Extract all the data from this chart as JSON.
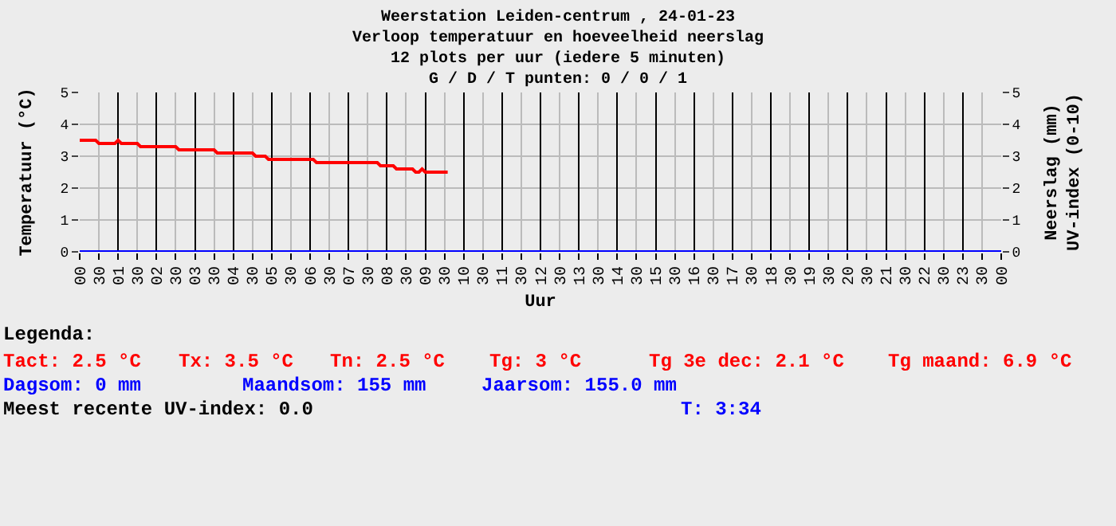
{
  "chart_data": {
    "type": "line",
    "title": "Weerstation Leiden-centrum , 24-01-23\nVerloop temperatuur en hoeveelheid neerslag\n12 plots per uur (iedere 5 minuten)\nG / D / T punten: 0 / 0 / 1",
    "xlabel": "Uur",
    "ylabel": "Temperatuur (°C)",
    "y2label": "Neerslag (mm)\nUV-index (0-10)",
    "categories": [
      "00",
      null,
      null,
      null,
      null,
      null,
      "30",
      null,
      null,
      null,
      null,
      null,
      "01",
      null,
      null,
      null,
      null,
      null,
      "30",
      null,
      null,
      null,
      null,
      null,
      "02",
      null,
      null,
      null,
      null,
      null,
      "30",
      null,
      null,
      null,
      null,
      null,
      "03",
      null,
      null,
      null,
      null,
      null,
      "30",
      null,
      null,
      null,
      null,
      null,
      "04",
      null,
      null,
      null,
      null,
      null,
      "30",
      null,
      null,
      null,
      null,
      null,
      "05",
      null,
      null,
      null,
      null,
      null,
      "30",
      null,
      null,
      null,
      null,
      null,
      "06",
      null,
      null,
      null,
      null,
      null,
      "30",
      null,
      null,
      null,
      null,
      null,
      "07",
      null,
      null,
      null,
      null,
      null,
      "30",
      null,
      null,
      null,
      null,
      null,
      "08",
      null,
      null,
      null,
      null,
      null,
      "30",
      null,
      null,
      null,
      null,
      null,
      "09",
      null,
      null,
      null,
      null,
      null,
      "30",
      null,
      null,
      null,
      null,
      null,
      "10",
      null,
      null,
      null,
      null,
      null,
      "30",
      null,
      null,
      null,
      null,
      null,
      "11",
      null,
      null,
      null,
      null,
      null,
      "30",
      null,
      null,
      null,
      null,
      null,
      "12",
      null,
      null,
      null,
      null,
      null,
      "30",
      null,
      null,
      null,
      null,
      null,
      "13",
      null,
      null,
      null,
      null,
      null,
      "30",
      null,
      null,
      null,
      null,
      null,
      "14",
      null,
      null,
      null,
      null,
      null,
      "30",
      null,
      null,
      null,
      null,
      null,
      "15",
      null,
      null,
      null,
      null,
      null,
      "30",
      null,
      null,
      null,
      null,
      null,
      "16",
      null,
      null,
      null,
      null,
      null,
      "30",
      null,
      null,
      null,
      null,
      null,
      "17",
      null,
      null,
      null,
      null,
      null,
      "30",
      null,
      null,
      null,
      null,
      null,
      "18",
      null,
      null,
      null,
      null,
      null,
      "30",
      null,
      null,
      null,
      null,
      null,
      "19",
      null,
      null,
      null,
      null,
      null,
      "30",
      null,
      null,
      null,
      null,
      null,
      "20",
      null,
      null,
      null,
      null,
      null,
      "30",
      null,
      null,
      null,
      null,
      null,
      "21",
      null,
      null,
      null,
      null,
      null,
      "30",
      null,
      null,
      null,
      null,
      null,
      "22",
      null,
      null,
      null,
      null,
      null,
      "30",
      null,
      null,
      null,
      null,
      null,
      "23",
      null,
      null,
      null,
      null,
      null,
      "30",
      null,
      null,
      null,
      null,
      null,
      "00"
    ],
    "series": [
      {
        "color": "#ff0000",
        "values": [
          3.5,
          3.5,
          3.5,
          3.5,
          3.5,
          3.5,
          3.4,
          3.4,
          3.4,
          3.4,
          3.4,
          3.4,
          3.5,
          3.4,
          3.4,
          3.4,
          3.4,
          3.4,
          3.4,
          3.3,
          3.3,
          3.3,
          3.3,
          3.3,
          3.3,
          3.3,
          3.3,
          3.3,
          3.3,
          3.3,
          3.3,
          3.2,
          3.2,
          3.2,
          3.2,
          3.2,
          3.2,
          3.2,
          3.2,
          3.2,
          3.2,
          3.2,
          3.2,
          3.1,
          3.1,
          3.1,
          3.1,
          3.1,
          3.1,
          3.1,
          3.1,
          3.1,
          3.1,
          3.1,
          3.1,
          3.0,
          3.0,
          3.0,
          3.0,
          2.9,
          2.9,
          2.9,
          2.9,
          2.9,
          2.9,
          2.9,
          2.9,
          2.9,
          2.9,
          2.9,
          2.9,
          2.9,
          2.9,
          2.9,
          2.8,
          2.8,
          2.8,
          2.8,
          2.8,
          2.8,
          2.8,
          2.8,
          2.8,
          2.8,
          2.8,
          2.8,
          2.8,
          2.8,
          2.8,
          2.8,
          2.8,
          2.8,
          2.8,
          2.8,
          2.7,
          2.7,
          2.7,
          2.7,
          2.7,
          2.6,
          2.6,
          2.6,
          2.6,
          2.6,
          2.6,
          2.5,
          2.5,
          2.6,
          2.5,
          2.5,
          2.5,
          2.5,
          2.5,
          2.5,
          2.5,
          2.5,
          null,
          null,
          null,
          null,
          null,
          null,
          null,
          null,
          null,
          null,
          null,
          null,
          null,
          null,
          null,
          null,
          null,
          null,
          null,
          null,
          null,
          null,
          null,
          null,
          null,
          null,
          null,
          null,
          null,
          null,
          null,
          null,
          null,
          null,
          null,
          null,
          null,
          null,
          null,
          null,
          null,
          null,
          null,
          null,
          null,
          null,
          null,
          null,
          null,
          null,
          null,
          null,
          null,
          null,
          null,
          null,
          null,
          null,
          null,
          null,
          null,
          null,
          null,
          null,
          null,
          null,
          null,
          null,
          null,
          null,
          null,
          null,
          null,
          null,
          null,
          null,
          null,
          null,
          null,
          null,
          null,
          null,
          null,
          null,
          null,
          null,
          null,
          null,
          null,
          null,
          null,
          null,
          null,
          null,
          null,
          null,
          null,
          null,
          null,
          null,
          null,
          null,
          null,
          null,
          null,
          null,
          null,
          null,
          null,
          null,
          null,
          null,
          null,
          null,
          null,
          null,
          null,
          null,
          null,
          null,
          null,
          null,
          null,
          null,
          null,
          null,
          null,
          null,
          null,
          null,
          null,
          null,
          null,
          null,
          null,
          null,
          null,
          null,
          null,
          null,
          null,
          null,
          null,
          null,
          null,
          null,
          null,
          null,
          null,
          null,
          null,
          null,
          null,
          null,
          null,
          null,
          null,
          null,
          null,
          null,
          null,
          null,
          null,
          null,
          null,
          null,
          null,
          null,
          null,
          null,
          null,
          null,
          null
        ]
      },
      {
        "color": "#0000ff",
        "axis": "y2",
        "values": [
          0,
          0,
          0,
          0,
          0,
          0,
          0,
          0,
          0,
          0,
          0,
          0,
          0,
          0,
          0,
          0,
          0,
          0,
          0,
          0,
          0,
          0,
          0,
          0,
          0,
          0,
          0,
          0,
          0,
          0,
          0,
          0,
          0,
          0,
          0,
          0,
          0,
          0,
          0,
          0,
          0,
          0,
          0,
          0,
          0,
          0,
          0,
          0,
          0,
          0,
          0,
          0,
          0,
          0,
          0,
          0,
          0,
          0,
          0,
          0,
          0,
          0,
          0,
          0,
          0,
          0,
          0,
          0,
          0,
          0,
          0,
          0,
          0,
          0,
          0,
          0,
          0,
          0,
          0,
          0,
          0,
          0,
          0,
          0,
          0,
          0,
          0,
          0,
          0,
          0,
          0,
          0,
          0,
          0,
          0,
          0,
          0,
          0,
          0,
          0,
          0,
          0,
          0,
          0,
          0,
          0,
          0,
          0,
          0,
          0,
          0,
          0,
          0,
          0,
          0,
          0,
          0,
          0,
          0,
          0,
          0,
          0,
          0,
          0,
          0,
          0,
          0,
          0,
          0,
          0,
          0,
          0,
          0,
          0,
          0,
          0,
          0,
          0,
          0,
          0,
          0,
          0,
          0,
          0,
          0,
          0,
          0,
          0,
          0,
          0,
          0,
          0,
          0,
          0,
          0,
          0,
          0,
          0,
          0,
          0,
          0,
          0,
          0,
          0,
          0,
          0,
          0,
          0,
          0,
          0,
          0,
          0,
          0,
          0,
          0,
          0,
          0,
          0,
          0,
          0,
          0,
          0,
          0,
          0,
          0,
          0,
          0,
          0,
          0,
          0,
          0,
          0,
          0,
          0,
          0,
          0,
          0,
          0,
          0,
          0,
          0,
          0,
          0,
          0,
          0,
          0,
          0,
          0,
          0,
          0,
          0,
          0,
          0,
          0,
          0,
          0,
          0,
          0,
          0,
          0,
          0,
          0,
          0,
          0,
          0,
          0,
          0,
          0,
          0,
          0,
          0,
          0,
          0,
          0,
          0,
          0,
          0,
          0,
          0,
          0,
          0,
          0,
          0,
          0,
          0,
          0,
          0,
          0,
          0,
          0,
          0,
          0,
          0,
          0,
          0,
          0,
          0,
          0,
          0,
          0,
          0,
          0,
          0,
          0,
          0,
          0,
          0,
          0,
          0,
          0,
          0,
          0,
          0,
          0,
          0,
          0,
          0,
          0,
          0,
          0,
          0,
          0,
          0,
          0,
          0,
          0,
          0,
          0,
          0
        ]
      }
    ],
    "ylim": [
      0,
      5
    ],
    "yticks": [
      0,
      1,
      2,
      3,
      4,
      5
    ],
    "y2lim": [
      0,
      5
    ],
    "y2ticks": [
      0,
      1,
      2,
      3,
      4,
      5
    ],
    "grid": true,
    "marker": "none",
    "line_style": "solid",
    "annotations": [
      "Legenda:",
      "Tact: 2.5 °C",
      "Tx: 3.5 °C",
      "Tn: 2.5 °C",
      "Tg: 3 °C",
      "Tg 3e dec: 2.1 °C",
      "Tg maand: 6.9 °C",
      "Dagsom: 0 mm",
      "Maandsom: 155 mm",
      "Jaarsom: 155.0 mm",
      "Meest recente UV-index: 0.0",
      "T: 3:34"
    ]
  }
}
